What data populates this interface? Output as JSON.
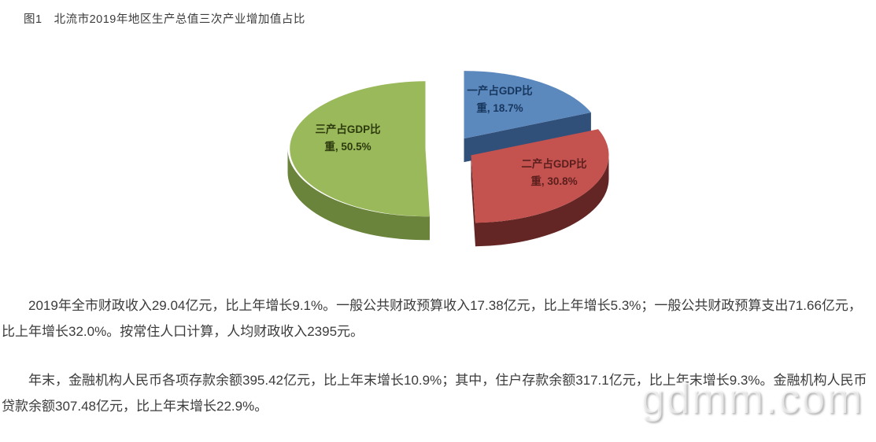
{
  "figure_title": "图1　北流市2019年地区生产总值三次产业增加值占比",
  "chart_data": {
    "type": "pie",
    "style": "3d-exploded",
    "title": "图1　北流市2019年地区生产总值三次产业增加值占比",
    "start_angle_deg": 0,
    "direction": "clockwise",
    "legend_position": "none",
    "slices": [
      {
        "name": "一产占GDP比重",
        "value": 18.7,
        "color": "#5b88bd",
        "side_color": "#30507a",
        "label_color": "#17375e",
        "label_lines": [
          "一产占GDP比",
          "重, 18.7%"
        ]
      },
      {
        "name": "二产占GDP比重",
        "value": 30.8,
        "color": "#c4524f",
        "side_color": "#632624",
        "label_color": "#5a1f1d",
        "label_lines": [
          "二产占GDP比",
          "重, 30.8%"
        ]
      },
      {
        "name": "三产占GDP比重",
        "value": 50.5,
        "color": "#9ab95a",
        "side_color": "#6a843b",
        "label_color": "#2c3a0e",
        "label_lines": [
          "三产占GDP比",
          "重, 50.5%"
        ]
      }
    ]
  },
  "paragraphs": [
    "2019年全市财政收入29.04亿元，比上年增长9.1%。一般公共财政预算收入17.38亿元，比上年增长5.3%；一般公共财政预算支出71.66亿元，比上年增长32.0%。按常住人口计算，人均财政收入2395元。",
    "年末，金融机构人民币各项存款余额395.42亿元，比上年末增长10.9%；其中，住户存款余额317.1亿元，比上年末增长9.3%。金融机构人民币贷款余额307.48亿元，比上年末增长22.9%。"
  ],
  "watermark": "gdmm.com"
}
